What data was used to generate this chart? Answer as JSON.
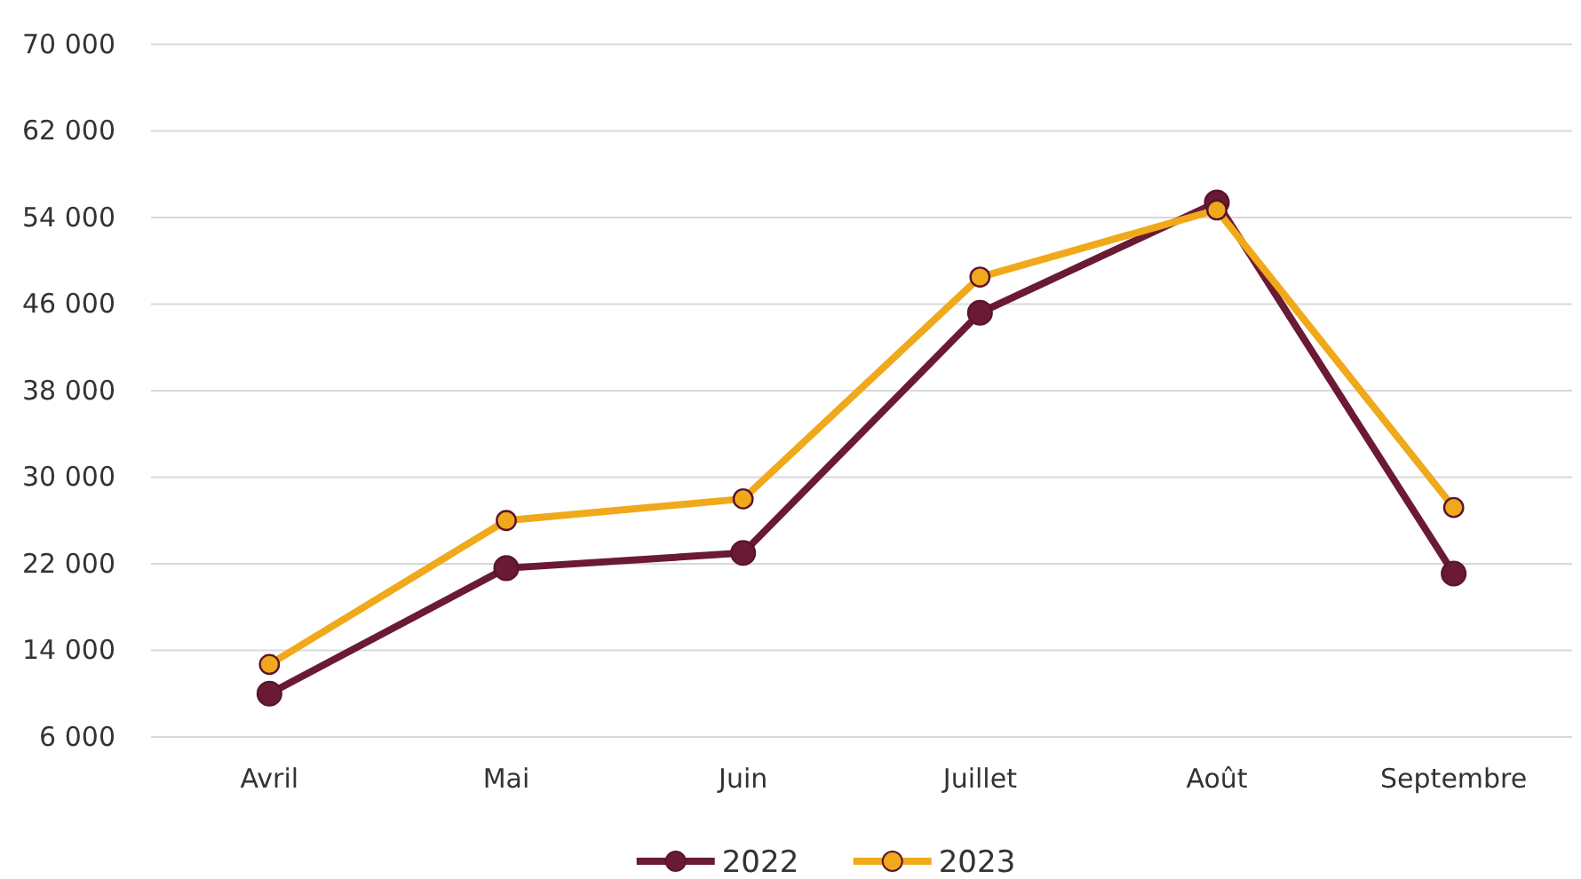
{
  "chart_data": {
    "type": "line",
    "categories": [
      "Avril",
      "Mai",
      "Juin",
      "Juillet",
      "Août",
      "Septembre"
    ],
    "series": [
      {
        "name": "2022",
        "color": "#6b1a35",
        "values": [
          10000,
          21600,
          23000,
          45200,
          55400,
          21100
        ]
      },
      {
        "name": "2023",
        "color": "#f0a91b",
        "values": [
          12700,
          26000,
          28000,
          48500,
          54700,
          27200
        ]
      }
    ],
    "ylim": [
      6000,
      70000
    ],
    "yticks": [
      {
        "value": 6000,
        "label": "6 000"
      },
      {
        "value": 14000,
        "label": "14 000"
      },
      {
        "value": 22000,
        "label": "22 000"
      },
      {
        "value": 30000,
        "label": "30 000"
      },
      {
        "value": 38000,
        "label": "38 000"
      },
      {
        "value": 46000,
        "label": "46 000"
      },
      {
        "value": 54000,
        "label": "54 000"
      },
      {
        "value": 62000,
        "label": "62 000"
      },
      {
        "value": 70000,
        "label": "70 000"
      }
    ],
    "grid": "y",
    "legend": "bottom",
    "marker": "circle",
    "line_style": "solid"
  }
}
